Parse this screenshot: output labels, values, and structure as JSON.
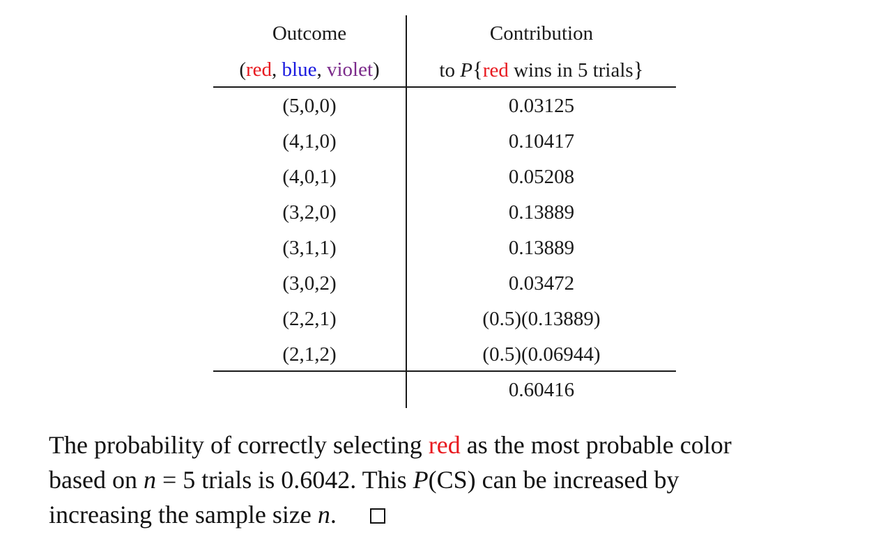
{
  "colors": {
    "red": "#e8191f",
    "blue": "#1a1adf",
    "violet": "#7b2a8a",
    "text": "#1a1a1a"
  },
  "table": {
    "header": {
      "col1_line1": "Outcome",
      "col1_line2": {
        "open": "(",
        "red": "red",
        "sep1": ", ",
        "blue": "blue",
        "sep2": ", ",
        "violet": "violet",
        "close": ")"
      },
      "col2_line1": "Contribution",
      "col2_line2": {
        "to": "to ",
        "p": "P",
        "lbrace": "{",
        "red": "red",
        "rest": " wins in 5 trials",
        "rbrace": "}"
      }
    },
    "rows": [
      {
        "outcome": "(5,0,0)",
        "contribution": "0.03125"
      },
      {
        "outcome": "(4,1,0)",
        "contribution": "0.10417"
      },
      {
        "outcome": "(4,0,1)",
        "contribution": "0.05208"
      },
      {
        "outcome": "(3,2,0)",
        "contribution": "0.13889"
      },
      {
        "outcome": "(3,1,1)",
        "contribution": "0.13889"
      },
      {
        "outcome": "(3,0,2)",
        "contribution": "0.03472"
      },
      {
        "outcome": "(2,2,1)",
        "contribution": "(0.5)(0.13889)"
      },
      {
        "outcome": "(2,1,2)",
        "contribution": "(0.5)(0.06944)"
      }
    ],
    "total": "0.60416"
  },
  "paragraph": {
    "line1_a": "The probability of correctly selecting ",
    "line1_red": "red",
    "line1_b": " as the most probable color",
    "line2_a": "based on ",
    "line2_n": "n",
    "line2_eq": " = 5",
    "line2_b": " trials is 0.6042. This ",
    "line2_p": "P",
    "line2_c": "(CS) can be increased by",
    "line3_a": "increasing the sample size ",
    "line3_n": "n",
    "line3_dot": "."
  }
}
